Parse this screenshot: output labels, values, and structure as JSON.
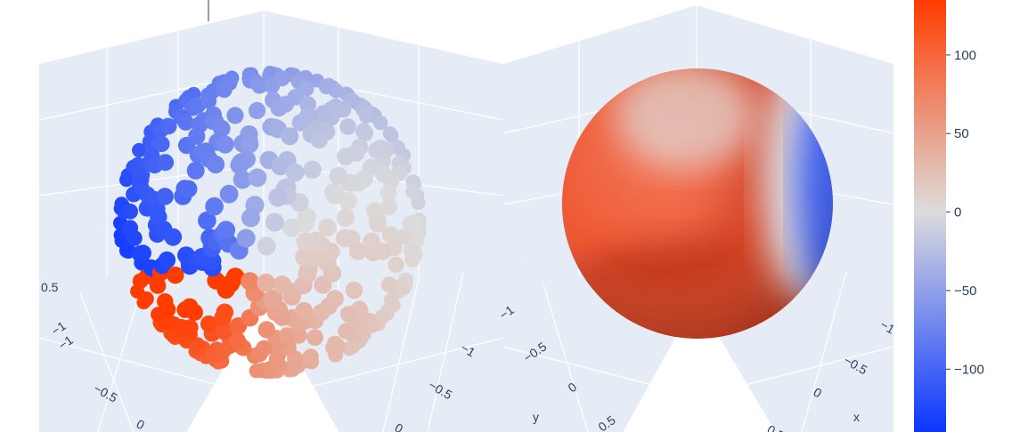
{
  "chart_data": [
    {
      "type": "scatter3d",
      "description_marker": "sphere-points",
      "colorscale": [
        "#0a36ff",
        "#dcdcdc",
        "#ff3c00"
      ],
      "color_range": [
        -140,
        135
      ],
      "tick_labels": [
        {
          "id": "l1",
          "text": "0.5"
        },
        {
          "id": "l2",
          "text": "−1"
        },
        {
          "id": "l3",
          "text": "−1"
        },
        {
          "id": "l4",
          "text": "−0.5"
        },
        {
          "id": "l5",
          "text": "0"
        },
        {
          "id": "l6",
          "text": "−1"
        },
        {
          "id": "l7",
          "text": "−0.5"
        },
        {
          "id": "l8",
          "text": "0"
        }
      ]
    },
    {
      "type": "surface",
      "colorscale": [
        "#0a36ff",
        "#dcdcdc",
        "#ff3c00"
      ],
      "color_range": [
        -140,
        135
      ],
      "tick_labels": [
        {
          "id": "r1",
          "text": "−1"
        },
        {
          "id": "r2",
          "text": "−0.5"
        },
        {
          "id": "r3",
          "text": "0"
        },
        {
          "id": "r4",
          "text": "y"
        },
        {
          "id": "r5",
          "text": "0.5"
        },
        {
          "id": "r6",
          "text": "−1"
        },
        {
          "id": "r7",
          "text": "−0.5"
        },
        {
          "id": "r8",
          "text": "0"
        },
        {
          "id": "r9",
          "text": "x"
        },
        {
          "id": "r10",
          "text": "0.5"
        }
      ]
    }
  ],
  "colorbar": {
    "colors": [
      "#0a36ff",
      "#dcdcdc",
      "#ff3c00"
    ],
    "range": [
      -140,
      135
    ],
    "ticks": [
      {
        "value": 100,
        "label": "100"
      },
      {
        "value": 50,
        "label": "50"
      },
      {
        "value": 0,
        "label": "0"
      },
      {
        "value": -50,
        "label": "−50"
      },
      {
        "value": -100,
        "label": "−100"
      }
    ]
  }
}
